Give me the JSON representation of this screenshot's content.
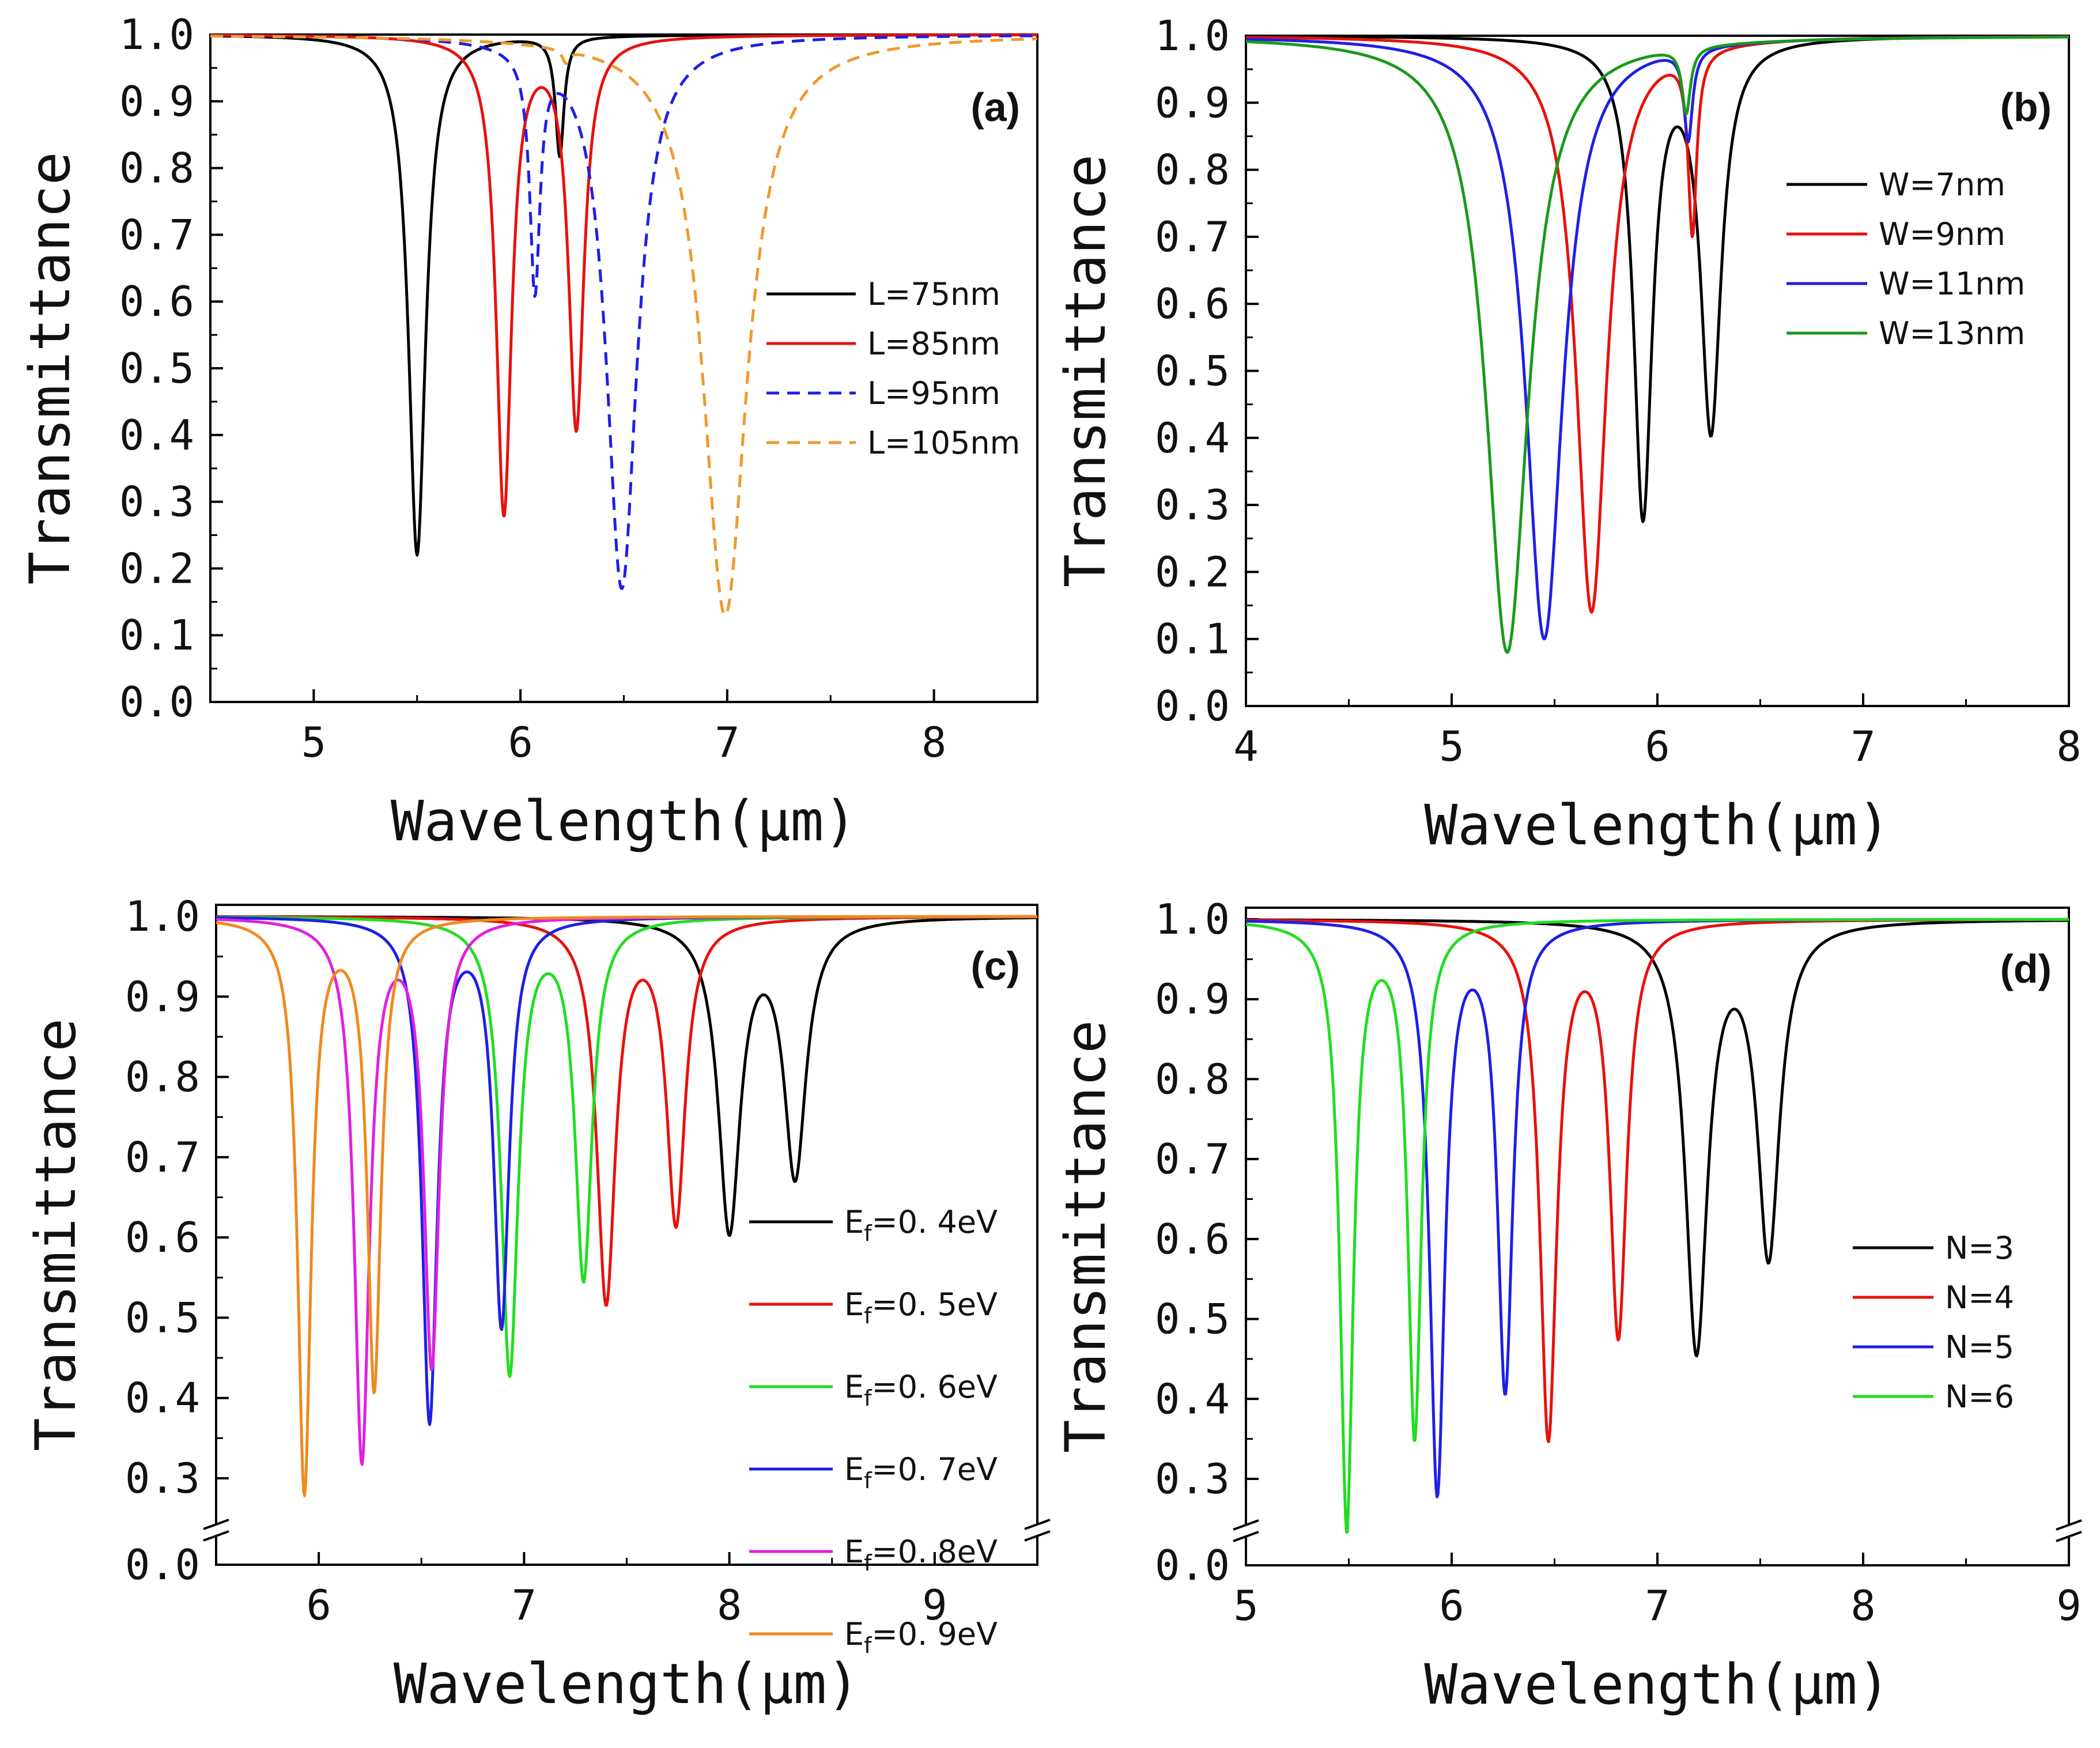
{
  "chart_data": [
    {
      "id": "a",
      "type": "line",
      "panel_label": "(a)",
      "xlabel": "Wavelength(μm)",
      "ylabel": "Transmittance",
      "xlim": [
        4.5,
        8.5
      ],
      "ylim": [
        0.0,
        1.0
      ],
      "broken_axis": false,
      "xticks": [
        "5",
        "6",
        "7",
        "8"
      ],
      "yticks": [
        "0.0",
        "0.1",
        "0.2",
        "0.3",
        "0.4",
        "0.5",
        "0.6",
        "0.7",
        "0.8",
        "0.9",
        "1.0"
      ],
      "legend_position": "right-middle",
      "series": [
        {
          "name": "L=75nm",
          "color": "#000000",
          "dash": "solid",
          "dips": [
            [
              5.5,
              0.22,
              0.1
            ],
            [
              6.19,
              0.82,
              0.05
            ]
          ]
        },
        {
          "name": "L=85nm",
          "color": "#e8110c",
          "dash": "solid",
          "dips": [
            [
              5.92,
              0.28,
              0.09
            ],
            [
              6.27,
              0.41,
              0.09
            ]
          ]
        },
        {
          "name": "L=95nm",
          "color": "#1f1fe6",
          "dash": "dashed",
          "dips": [
            [
              6.07,
              0.63,
              0.06
            ],
            [
              6.49,
              0.17,
              0.18
            ]
          ]
        },
        {
          "name": "L=105nm",
          "color": "#ef9a2e",
          "dash": "dashed",
          "dips": [
            [
              6.22,
              0.98,
              0.04
            ],
            [
              6.99,
              0.13,
              0.26
            ]
          ]
        }
      ]
    },
    {
      "id": "b",
      "type": "line",
      "panel_label": "(b)",
      "xlabel": "Wavelength(μm)",
      "ylabel": "Transmittance",
      "xlim": [
        4,
        8
      ],
      "ylim": [
        0.0,
        1.0
      ],
      "broken_axis": false,
      "xticks": [
        "4",
        "5",
        "6",
        "7",
        "8"
      ],
      "yticks": [
        "0.0",
        "0.1",
        "0.2",
        "0.3",
        "0.4",
        "0.5",
        "0.6",
        "0.7",
        "0.8",
        "0.9",
        "1.0"
      ],
      "legend_position": "top-right",
      "series": [
        {
          "name": "W=7nm",
          "color": "#000000",
          "dash": "solid",
          "dips": [
            [
              5.93,
              0.28,
              0.11
            ],
            [
              6.26,
              0.41,
              0.12
            ]
          ]
        },
        {
          "name": "W=9nm",
          "color": "#e8110c",
          "dash": "solid",
          "dips": [
            [
              5.68,
              0.14,
              0.18
            ],
            [
              6.17,
              0.72,
              0.05
            ]
          ]
        },
        {
          "name": "W=11nm",
          "color": "#1f1fe6",
          "dash": "solid",
          "dips": [
            [
              5.45,
              0.1,
              0.22
            ],
            [
              6.15,
              0.86,
              0.05
            ]
          ]
        },
        {
          "name": "W=13nm",
          "color": "#1a9a1a",
          "dash": "solid",
          "dips": [
            [
              5.27,
              0.08,
              0.25
            ],
            [
              6.14,
              0.9,
              0.05
            ]
          ]
        }
      ]
    },
    {
      "id": "c",
      "type": "line",
      "panel_label": "(c)",
      "xlabel": "Wavelength(μm)",
      "ylabel": "Transmittance",
      "xlim": [
        5.5,
        9.5
      ],
      "ylim": [
        0.0,
        1.0
      ],
      "broken_axis": true,
      "xticks": [
        "6",
        "7",
        "8",
        "9"
      ],
      "yticks": [
        "0.0",
        "0.3",
        "0.4",
        "0.5",
        "0.6",
        "0.7",
        "0.8",
        "0.9",
        "1.0"
      ],
      "legend_position": "bottom-right",
      "series": [
        {
          "name": "E_f=0.4eV",
          "label_main": "E",
          "label_sub": "f",
          "label_rest": "=0. 4eV",
          "color": "#000000",
          "dash": "solid",
          "dips": [
            [
              8.0,
              0.61,
              0.13
            ],
            [
              8.32,
              0.68,
              0.13
            ]
          ]
        },
        {
          "name": "E_f=0.5eV",
          "label_main": "E",
          "label_sub": "f",
          "label_rest": "=0. 5eV",
          "color": "#e8110c",
          "dash": "solid",
          "dips": [
            [
              7.4,
              0.52,
              0.11
            ],
            [
              7.74,
              0.62,
              0.11
            ]
          ]
        },
        {
          "name": "E_f=0.6eV",
          "label_main": "E",
          "label_sub": "f",
          "label_rest": "=0. 6eV",
          "color": "#22dd22",
          "dash": "solid",
          "dips": [
            [
              6.93,
              0.43,
              0.1
            ],
            [
              7.29,
              0.55,
              0.1
            ]
          ]
        },
        {
          "name": "E_f=0.7eV",
          "label_main": "E",
          "label_sub": "f",
          "label_rest": "=0. 7eV",
          "color": "#1f1fe6",
          "dash": "solid",
          "dips": [
            [
              6.54,
              0.37,
              0.09
            ],
            [
              6.89,
              0.49,
              0.09
            ]
          ]
        },
        {
          "name": "E_f=0.8eV",
          "label_main": "E",
          "label_sub": "f",
          "label_rest": "=0. 8eV",
          "color": "#e020e0",
          "dash": "solid",
          "dips": [
            [
              6.21,
              0.32,
              0.09
            ],
            [
              6.55,
              0.44,
              0.09
            ]
          ]
        },
        {
          "name": "E_f=0.9eV",
          "label_main": "E",
          "label_sub": "f",
          "label_rest": "=0. 9eV",
          "color": "#ef8a1e",
          "dash": "solid",
          "dips": [
            [
              5.93,
              0.28,
              0.08
            ],
            [
              6.27,
              0.41,
              0.08
            ]
          ]
        }
      ]
    },
    {
      "id": "d",
      "type": "line",
      "panel_label": "(d)",
      "xlabel": "Wavelength(μm)",
      "ylabel": "Transmittance",
      "xlim": [
        5,
        9
      ],
      "ylim": [
        0.0,
        1.0
      ],
      "broken_axis": true,
      "xticks": [
        "5",
        "6",
        "7",
        "8",
        "9"
      ],
      "yticks": [
        "0.0",
        "0.3",
        "0.4",
        "0.5",
        "0.6",
        "0.7",
        "0.8",
        "0.9",
        "1.0"
      ],
      "legend_position": "right-middle",
      "series": [
        {
          "name": "N=3",
          "color": "#000000",
          "dash": "solid",
          "dips": [
            [
              7.19,
              0.46,
              0.13
            ],
            [
              7.54,
              0.58,
              0.13
            ]
          ]
        },
        {
          "name": "N=4",
          "color": "#e8110c",
          "dash": "solid",
          "dips": [
            [
              6.47,
              0.35,
              0.1
            ],
            [
              6.81,
              0.48,
              0.1
            ]
          ]
        },
        {
          "name": "N=5",
          "color": "#1f1fe6",
          "dash": "solid",
          "dips": [
            [
              5.93,
              0.28,
              0.09
            ],
            [
              6.26,
              0.41,
              0.09
            ]
          ]
        },
        {
          "name": "N=6",
          "color": "#22dd22",
          "dash": "solid",
          "dips": [
            [
              5.49,
              0.24,
              0.08
            ],
            [
              5.82,
              0.35,
              0.08
            ]
          ]
        }
      ]
    }
  ]
}
